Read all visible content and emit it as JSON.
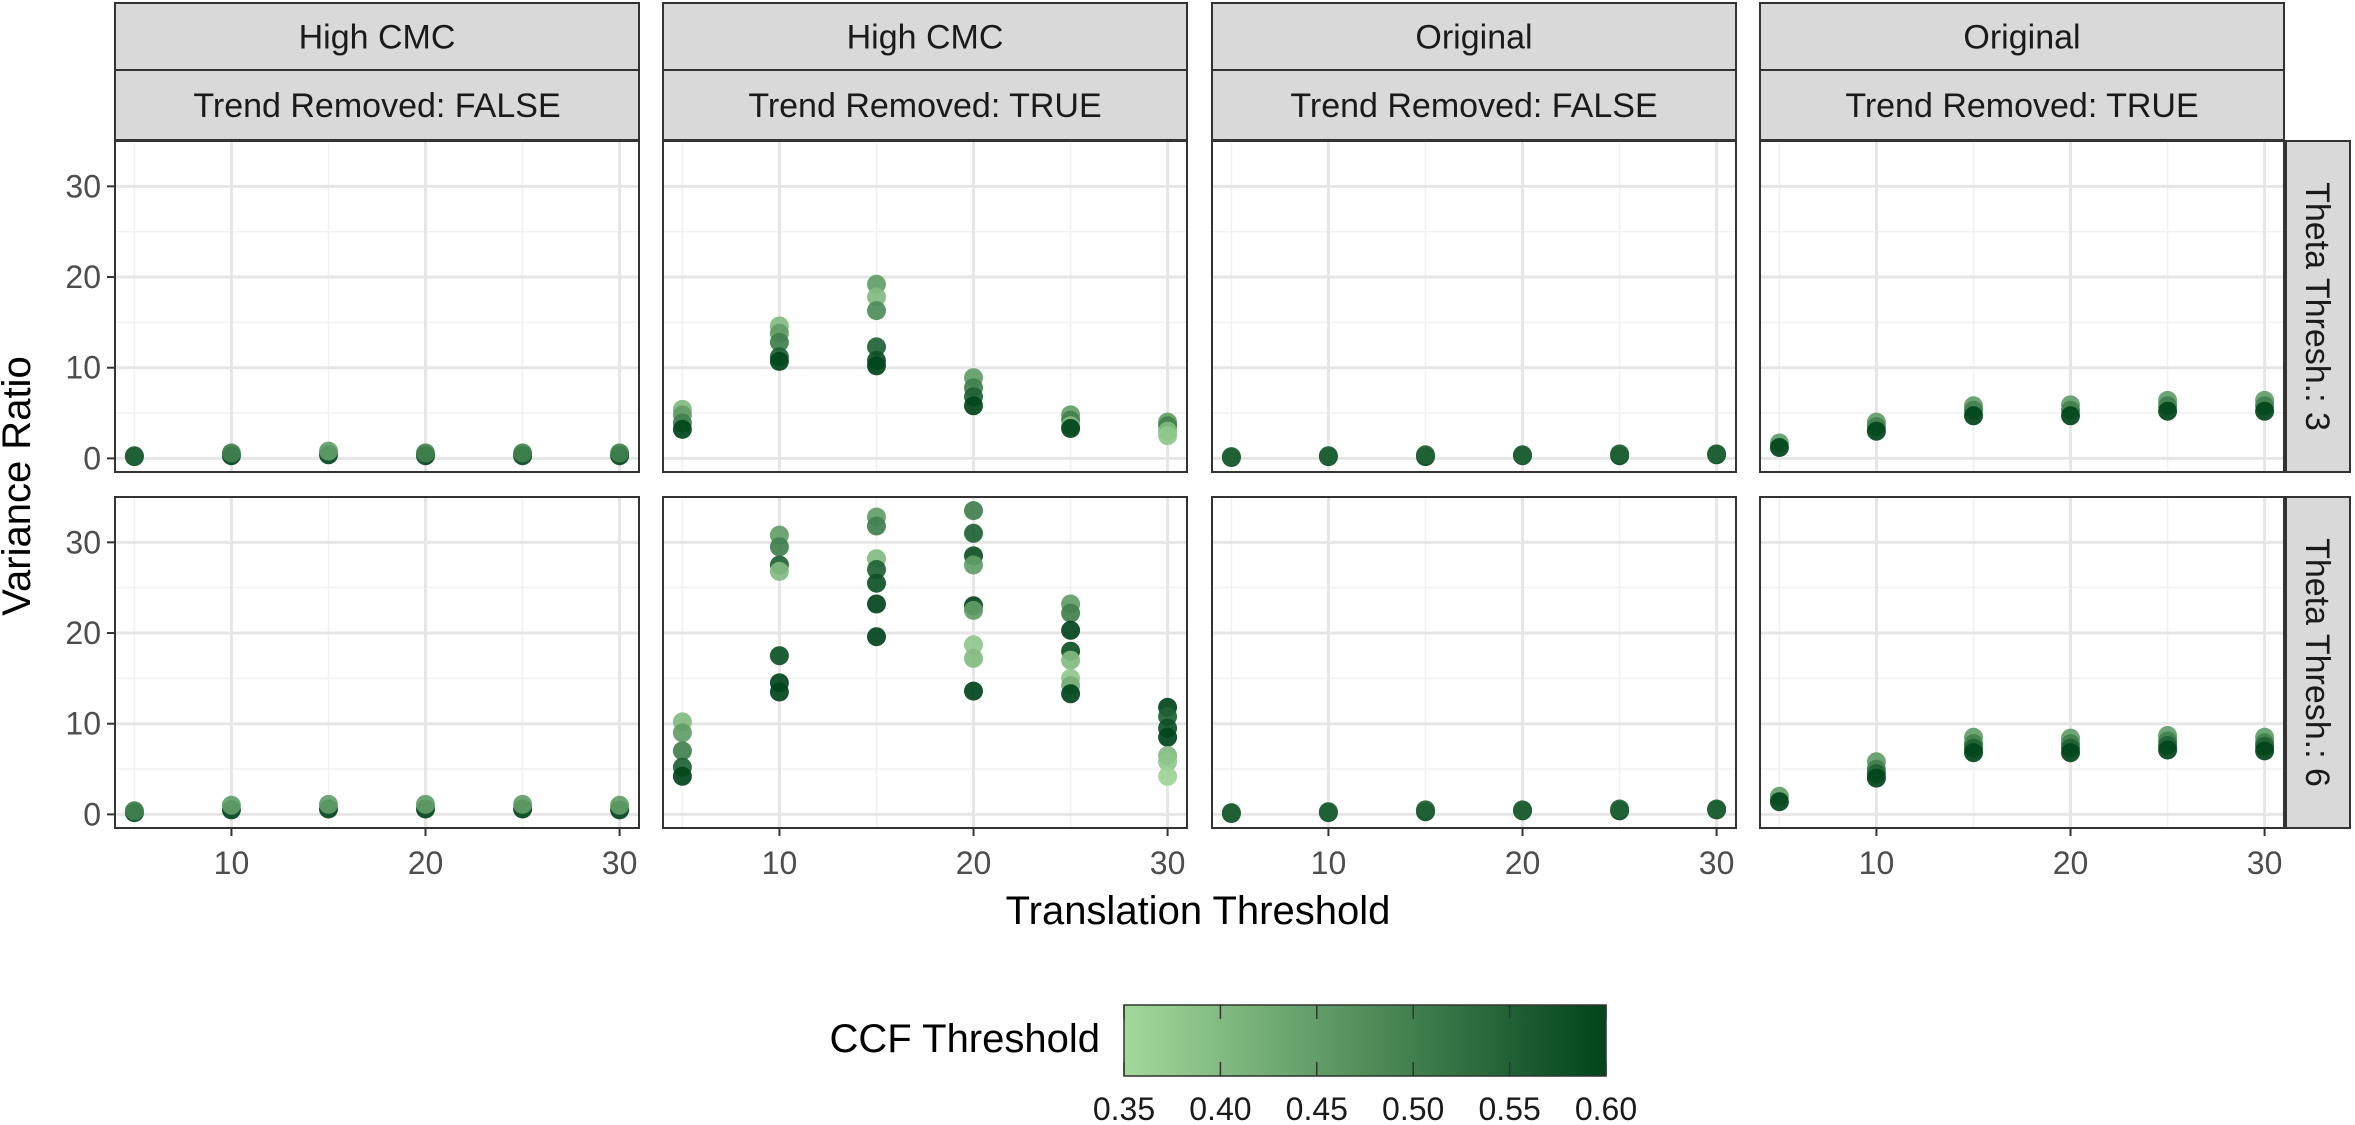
{
  "chart_data": {
    "type": "scatter",
    "title": "",
    "xlabel": "Translation Threshold",
    "ylabel": "Variance Ratio",
    "xlim": [
      4,
      31
    ],
    "ylim": [
      -1.5,
      35
    ],
    "x_ticks": [
      10,
      20,
      30
    ],
    "y_ticks": [
      0,
      10,
      20,
      30
    ],
    "grid": true,
    "column_strips": [
      {
        "top": "High CMC",
        "bottom": "Trend Removed: FALSE"
      },
      {
        "top": "High CMC",
        "bottom": "Trend Removed: TRUE"
      },
      {
        "top": "Original",
        "bottom": "Trend Removed: FALSE"
      },
      {
        "top": "Original",
        "bottom": "Trend Removed: TRUE"
      }
    ],
    "row_strips": [
      "Theta Thresh.: 3",
      "Theta Thresh.: 6"
    ],
    "color_legend": {
      "title": "CCF Threshold",
      "min": 0.35,
      "max": 0.6,
      "ticks": [
        "0.35",
        "0.40",
        "0.45",
        "0.50",
        "0.55",
        "0.60"
      ],
      "low_color": "#a3d99b",
      "high_color": "#00441b",
      "placement": "bottom"
    },
    "panels": [
      {
        "row": 0,
        "col": 0,
        "points": [
          [
            5,
            0.2,
            0.6
          ],
          [
            5,
            0.3,
            0.55
          ],
          [
            10,
            0.3,
            0.6
          ],
          [
            10,
            0.6,
            0.5
          ],
          [
            15,
            0.4,
            0.6
          ],
          [
            15,
            0.8,
            0.45
          ],
          [
            20,
            0.3,
            0.6
          ],
          [
            20,
            0.6,
            0.5
          ],
          [
            25,
            0.3,
            0.6
          ],
          [
            25,
            0.6,
            0.5
          ],
          [
            30,
            0.3,
            0.6
          ],
          [
            30,
            0.6,
            0.5
          ]
        ]
      },
      {
        "row": 0,
        "col": 1,
        "points": [
          [
            5,
            5.4,
            0.4
          ],
          [
            5,
            4.8,
            0.45
          ],
          [
            5,
            3.9,
            0.5
          ],
          [
            5,
            3.2,
            0.6
          ],
          [
            10,
            14.6,
            0.4
          ],
          [
            10,
            13.8,
            0.45
          ],
          [
            10,
            12.8,
            0.5
          ],
          [
            10,
            11.2,
            0.55
          ],
          [
            10,
            10.7,
            0.6
          ],
          [
            15,
            19.2,
            0.45
          ],
          [
            15,
            17.8,
            0.4
          ],
          [
            15,
            16.3,
            0.48
          ],
          [
            15,
            12.3,
            0.55
          ],
          [
            15,
            10.8,
            0.58
          ],
          [
            15,
            10.2,
            0.6
          ],
          [
            20,
            8.9,
            0.45
          ],
          [
            20,
            7.8,
            0.5
          ],
          [
            20,
            6.8,
            0.55
          ],
          [
            20,
            5.8,
            0.6
          ],
          [
            25,
            4.8,
            0.45
          ],
          [
            25,
            4.2,
            0.5
          ],
          [
            25,
            3.6,
            0.4
          ],
          [
            25,
            3.3,
            0.6
          ],
          [
            30,
            4.0,
            0.45
          ],
          [
            30,
            3.6,
            0.5
          ],
          [
            30,
            3.0,
            0.4
          ],
          [
            30,
            2.5,
            0.38
          ]
        ]
      },
      {
        "row": 0,
        "col": 2,
        "points": [
          [
            5,
            0.1,
            0.6
          ],
          [
            5,
            0.2,
            0.55
          ],
          [
            10,
            0.2,
            0.6
          ],
          [
            10,
            0.3,
            0.55
          ],
          [
            15,
            0.2,
            0.6
          ],
          [
            15,
            0.4,
            0.55
          ],
          [
            20,
            0.3,
            0.6
          ],
          [
            20,
            0.4,
            0.55
          ],
          [
            25,
            0.3,
            0.6
          ],
          [
            25,
            0.5,
            0.55
          ],
          [
            30,
            0.4,
            0.6
          ],
          [
            30,
            0.5,
            0.55
          ]
        ]
      },
      {
        "row": 0,
        "col": 3,
        "points": [
          [
            5,
            1.7,
            0.45
          ],
          [
            5,
            1.2,
            0.6
          ],
          [
            10,
            4.0,
            0.45
          ],
          [
            10,
            3.5,
            0.5
          ],
          [
            10,
            3.0,
            0.6
          ],
          [
            15,
            5.8,
            0.45
          ],
          [
            15,
            5.3,
            0.5
          ],
          [
            15,
            4.7,
            0.6
          ],
          [
            20,
            5.9,
            0.45
          ],
          [
            20,
            5.3,
            0.5
          ],
          [
            20,
            4.7,
            0.6
          ],
          [
            25,
            6.4,
            0.45
          ],
          [
            25,
            5.8,
            0.5
          ],
          [
            25,
            5.2,
            0.6
          ],
          [
            30,
            6.4,
            0.45
          ],
          [
            30,
            5.8,
            0.5
          ],
          [
            30,
            5.2,
            0.6
          ]
        ]
      },
      {
        "row": 1,
        "col": 0,
        "points": [
          [
            5,
            0.2,
            0.6
          ],
          [
            5,
            0.4,
            0.5
          ],
          [
            10,
            0.5,
            0.6
          ],
          [
            10,
            1.0,
            0.45
          ],
          [
            15,
            0.6,
            0.6
          ],
          [
            15,
            1.1,
            0.45
          ],
          [
            20,
            0.6,
            0.6
          ],
          [
            20,
            1.1,
            0.45
          ],
          [
            25,
            0.6,
            0.6
          ],
          [
            25,
            1.1,
            0.45
          ],
          [
            30,
            0.5,
            0.6
          ],
          [
            30,
            1.0,
            0.45
          ]
        ]
      },
      {
        "row": 1,
        "col": 1,
        "points": [
          [
            5,
            10.2,
            0.4
          ],
          [
            5,
            9.0,
            0.45
          ],
          [
            5,
            7.0,
            0.5
          ],
          [
            5,
            5.2,
            0.55
          ],
          [
            5,
            4.2,
            0.6
          ],
          [
            10,
            30.8,
            0.45
          ],
          [
            10,
            29.5,
            0.5
          ],
          [
            10,
            27.5,
            0.55
          ],
          [
            10,
            26.8,
            0.4
          ],
          [
            10,
            17.5,
            0.58
          ],
          [
            10,
            14.5,
            0.6
          ],
          [
            10,
            13.5,
            0.6
          ],
          [
            15,
            32.8,
            0.45
          ],
          [
            15,
            31.8,
            0.5
          ],
          [
            15,
            28.2,
            0.4
          ],
          [
            15,
            27.0,
            0.55
          ],
          [
            15,
            25.5,
            0.58
          ],
          [
            15,
            23.2,
            0.6
          ],
          [
            15,
            19.6,
            0.6
          ],
          [
            20,
            33.5,
            0.5
          ],
          [
            20,
            31.0,
            0.55
          ],
          [
            20,
            28.5,
            0.58
          ],
          [
            20,
            27.5,
            0.45
          ],
          [
            20,
            23.0,
            0.6
          ],
          [
            20,
            22.5,
            0.45
          ],
          [
            20,
            18.7,
            0.38
          ],
          [
            20,
            17.2,
            0.4
          ],
          [
            20,
            13.6,
            0.6
          ],
          [
            25,
            23.2,
            0.45
          ],
          [
            25,
            22.2,
            0.5
          ],
          [
            25,
            20.3,
            0.6
          ],
          [
            25,
            18.0,
            0.58
          ],
          [
            25,
            17.0,
            0.4
          ],
          [
            25,
            15.0,
            0.38
          ],
          [
            25,
            14.2,
            0.42
          ],
          [
            25,
            13.3,
            0.6
          ],
          [
            30,
            11.8,
            0.6
          ],
          [
            30,
            10.8,
            0.55
          ],
          [
            30,
            9.5,
            0.58
          ],
          [
            30,
            8.5,
            0.6
          ],
          [
            30,
            6.5,
            0.4
          ],
          [
            30,
            5.8,
            0.38
          ],
          [
            30,
            4.2,
            0.36
          ]
        ]
      },
      {
        "row": 1,
        "col": 2,
        "points": [
          [
            5,
            0.1,
            0.6
          ],
          [
            5,
            0.2,
            0.55
          ],
          [
            10,
            0.2,
            0.6
          ],
          [
            10,
            0.3,
            0.55
          ],
          [
            15,
            0.3,
            0.6
          ],
          [
            15,
            0.5,
            0.55
          ],
          [
            20,
            0.4,
            0.6
          ],
          [
            20,
            0.5,
            0.55
          ],
          [
            25,
            0.4,
            0.6
          ],
          [
            25,
            0.6,
            0.55
          ],
          [
            30,
            0.5,
            0.6
          ],
          [
            30,
            0.6,
            0.55
          ]
        ]
      },
      {
        "row": 1,
        "col": 3,
        "points": [
          [
            5,
            2.0,
            0.45
          ],
          [
            5,
            1.4,
            0.6
          ],
          [
            10,
            5.8,
            0.45
          ],
          [
            10,
            5.0,
            0.5
          ],
          [
            10,
            4.5,
            0.55
          ],
          [
            10,
            4.0,
            0.6
          ],
          [
            15,
            8.5,
            0.45
          ],
          [
            15,
            7.8,
            0.5
          ],
          [
            15,
            7.3,
            0.55
          ],
          [
            15,
            6.8,
            0.6
          ],
          [
            20,
            8.4,
            0.45
          ],
          [
            20,
            7.8,
            0.5
          ],
          [
            20,
            7.3,
            0.55
          ],
          [
            20,
            6.8,
            0.6
          ],
          [
            25,
            8.7,
            0.45
          ],
          [
            25,
            8.1,
            0.5
          ],
          [
            25,
            7.6,
            0.55
          ],
          [
            25,
            7.1,
            0.6
          ],
          [
            30,
            8.5,
            0.45
          ],
          [
            30,
            7.9,
            0.5
          ],
          [
            30,
            7.5,
            0.55
          ],
          [
            30,
            7.0,
            0.6
          ]
        ]
      }
    ]
  }
}
